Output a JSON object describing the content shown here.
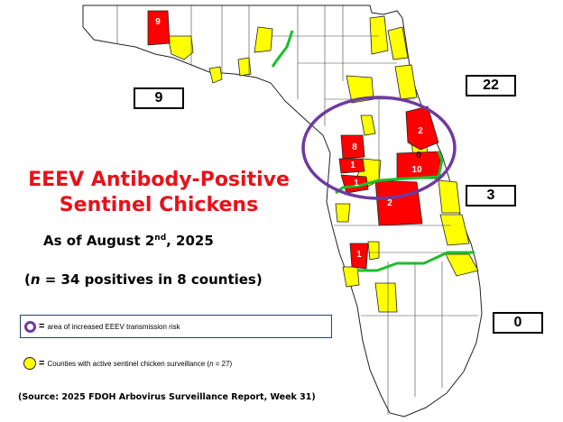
{
  "title_line1": "EEEV Antibody-Positive",
  "title_line2": "Sentinel Chickens",
  "subtitle_prefix": "As of August 2",
  "subtitle_sup": "nd",
  "subtitle_suffix": ", 2025",
  "count_open": "(",
  "count_n": "n",
  "count_rest": " = 34 positives in 8 counties)",
  "legend": {
    "circle_eq": "=",
    "circle_label": "area of increased EEEV transmission risk",
    "yellow_eq": "=",
    "yellow_label_pre": "Counties with active sentinel chicken surveillance (",
    "yellow_label_n": "n",
    "yellow_label_post": " = 27)"
  },
  "source": "(Source: 2025 FDOH Arbovirus Surveillance Report, Week 31)",
  "region_totals": {
    "northwest": "9",
    "northeast": "22",
    "central_east": "3",
    "south": "0"
  },
  "positive_counties": [
    {
      "value": "9"
    },
    {
      "value": "2"
    },
    {
      "value": "8"
    },
    {
      "value": "1"
    },
    {
      "value": "0"
    },
    {
      "value": "10"
    },
    {
      "value": "1"
    },
    {
      "value": "2"
    },
    {
      "value": "1"
    }
  ],
  "colors": {
    "positive": "#ff0000",
    "surveillance": "#ffff00",
    "region_divider": "#1dbe2c",
    "risk_circle": "#6e3aa0",
    "title": "#e8111a"
  }
}
